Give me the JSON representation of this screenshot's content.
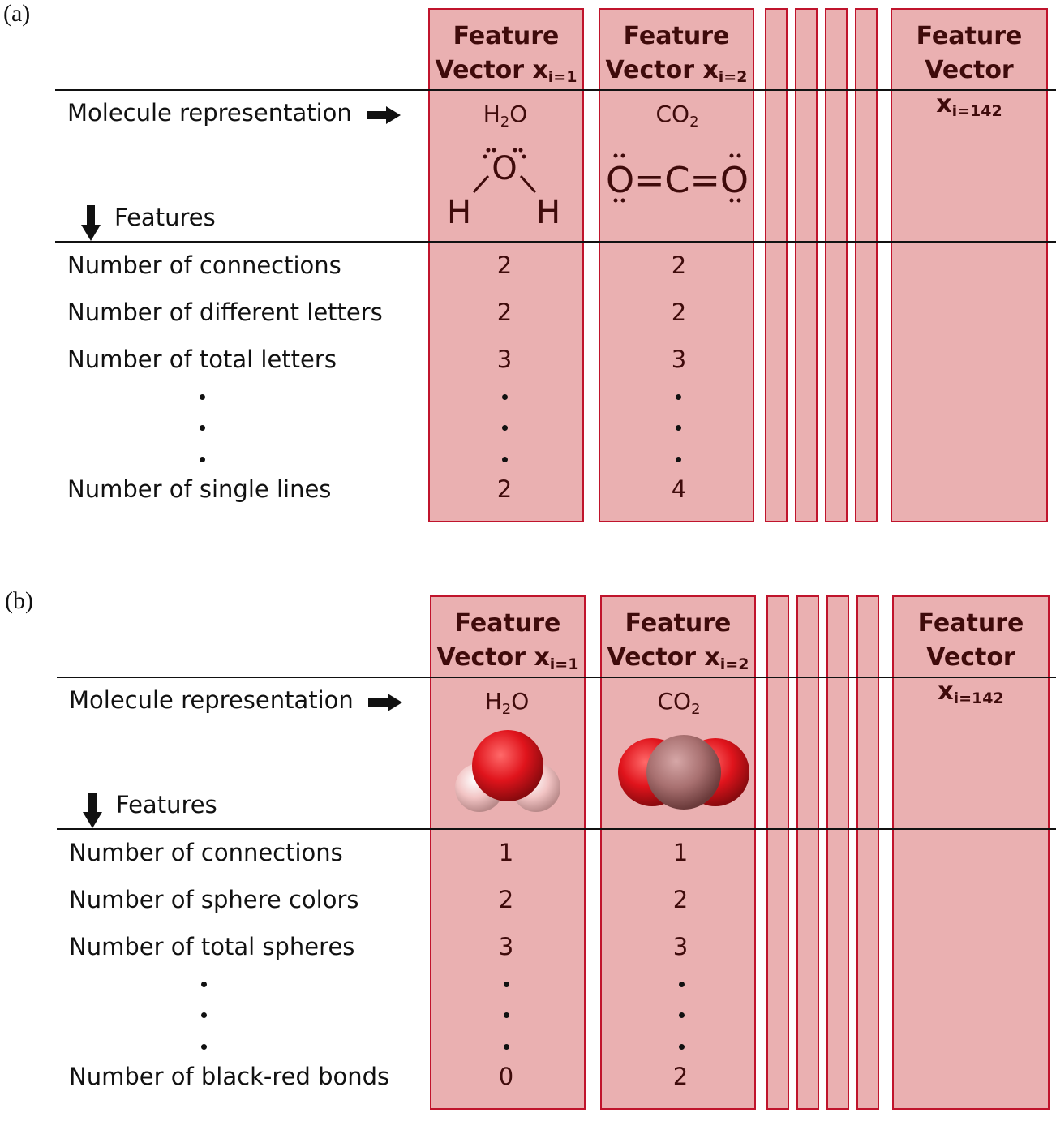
{
  "panels": [
    {
      "label": "(a)",
      "columns": [
        {
          "head_line1": "Feature",
          "head_line2": "Vector x",
          "head_sub": "i=1",
          "formula_main": "H",
          "formula_sub": "2",
          "formula_tail": "O",
          "values": [
            "2",
            "2",
            "3",
            "2"
          ]
        },
        {
          "head_line1": "Feature",
          "head_line2": "Vector x",
          "head_sub": "i=2",
          "formula_main": "CO",
          "formula_sub": "2",
          "formula_tail": "",
          "values": [
            "2",
            "2",
            "3",
            "4"
          ]
        },
        {
          "head_line1": "Feature",
          "head_line2": "Vector x",
          "head_sub": "i=142"
        }
      ],
      "molecule_label": "Molecule representation",
      "features_label": "Features",
      "rows": [
        "Number of connections",
        "Number of different letters",
        "Number of total letters",
        "Number of single lines"
      ],
      "lewis_h2o": {
        "o": "O",
        "h": "H"
      },
      "lewis_co2": {
        "text": "O=C=O"
      }
    },
    {
      "label": "(b)",
      "columns": [
        {
          "head_line1": "Feature",
          "head_line2": "Vector x",
          "head_sub": "i=1",
          "formula_main": "H",
          "formula_sub": "2",
          "formula_tail": "O",
          "values": [
            "1",
            "2",
            "3",
            "0"
          ]
        },
        {
          "head_line1": "Feature",
          "head_line2": "Vector x",
          "head_sub": "i=2",
          "formula_main": "CO",
          "formula_sub": "2",
          "formula_tail": "",
          "values": [
            "1",
            "2",
            "3",
            "2"
          ]
        },
        {
          "head_line1": "Feature",
          "head_line2": "Vector x",
          "head_sub": "i=142"
        }
      ],
      "molecule_label": "Molecule representation",
      "features_label": "Features",
      "rows": [
        "Number of connections",
        "Number of sphere colors",
        "Number of total spheres",
        "Number of black-red bonds"
      ]
    }
  ],
  "colors": {
    "column_fill": "#eab0b1",
    "column_border": "#c0142c",
    "header_text": "#3f0b0b",
    "oxygen": "#e0141c",
    "hydrogen": "#f2c4c4",
    "carbon": "#a87070"
  }
}
